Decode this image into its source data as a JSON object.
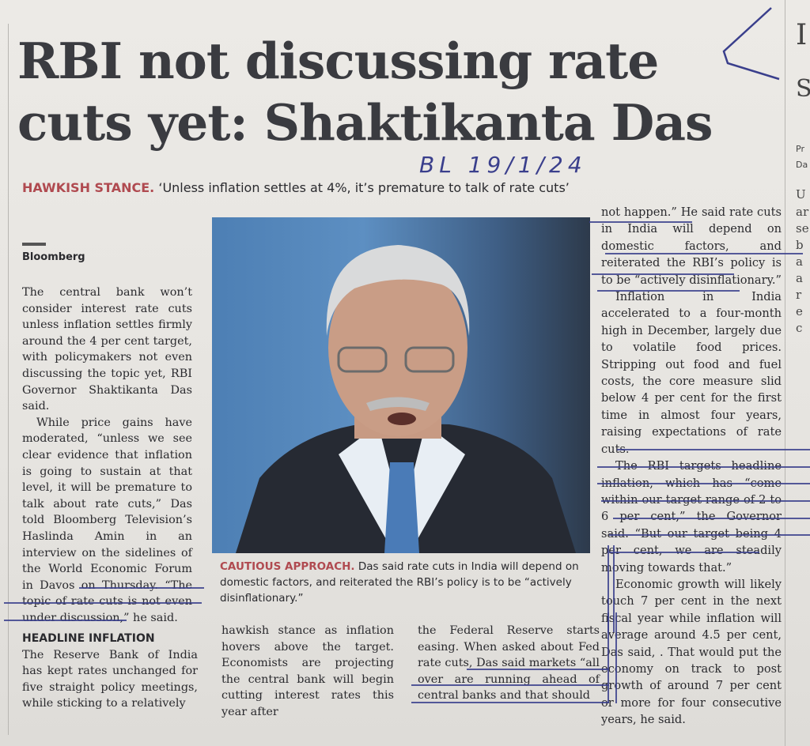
{
  "headline": "RBI not discussing rate cuts yet: Shaktikanta Das",
  "kicker_label": "HAWKISH STANCE.",
  "kicker_text": "‘Unless inflation settles at 4%, it’s premature to talk of rate cuts’",
  "handwritten_note": "BL 19/1/24",
  "byline": "Bloomberg",
  "col1": [
    "The central bank won’t consider interest rate cuts unless inflation settles firmly around the 4 per cent target, with policymakers not even discussing the topic yet, RBI Governor Shaktikanta Das said.",
    "While price gains have moderated, “unless we see clear evidence that inflation is going to sustain at that level, it will be premature to talk about rate cuts,” Das told Bloomberg Television’s Haslinda Amin in an interview on the sidelines of the World Economic Forum in Davos on Thursday. “The topic of rate cuts is not even under discussion,” he said."
  ],
  "subhead": "HEADLINE INFLATION",
  "col1b": "The Reserve Bank of India has kept rates unchanged for five straight policy meetings, while sticking to a relatively",
  "caption_label": "CAUTIOUS APPROACH.",
  "caption_text": "Das said rate cuts in India will depend on domestic factors, and reiterated the RBI’s policy is to be “actively disinflationary.”",
  "col2": "hawkish stance as inflation hovers above the target. Economists are projecting the central bank will begin cutting interest rates this year after",
  "col3": "the Federal Reserve starts easing. When asked about Fed rate cuts, Das said markets “all over are running ahead of central banks and that should",
  "col4": [
    "not happen.” He said rate cuts in India will depend on domestic factors, and reiterated the RBI’s policy is to be “actively disinflationary.”",
    "Inflation in India accelerated to a four-month high in December, largely due to volatile food prices. Stripping out food and fuel costs, the core measure slid below 4 per cent for the first time in almost four years, raising expectations of rate cuts.",
    "The RBI targets headline inflation, which has “come within our target range of 2 to 6 per cent,” the Governor said. “But our target being 4 per cent, we are steadily moving towards that.”",
    "Economic growth will likely touch 7 per cent in the next fiscal year while inflation will average around 4.5 per cent, Das said, . That would put the economy on track to post growth of around 7 per cent or more for four consecutive years, he said."
  ],
  "edge_fragments": [
    "I",
    "S",
    "Pr",
    "Da",
    "U",
    "ar",
    "se",
    "b",
    "a",
    "a",
    "r",
    "e",
    "c"
  ]
}
